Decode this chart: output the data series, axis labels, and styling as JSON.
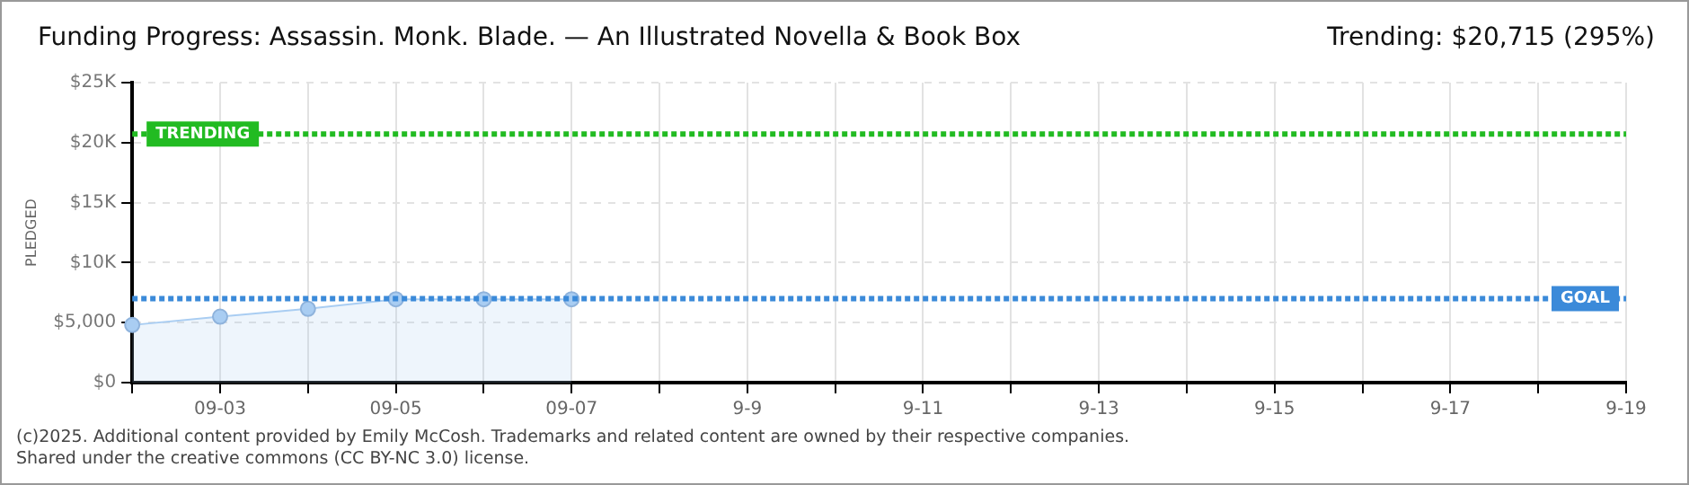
{
  "chart_data": {
    "type": "area",
    "title": "Funding Progress: Assassin. Monk. Blade. — An Illustrated Novella & Book Box",
    "ylabel": "PLEDGED",
    "annotations": [
      "Trending: $20,715 (295%)",
      "(c)2025. Additional content provided by Emily McCosh. Trademarks and related content are owned by their respective companies.",
      "Shared under the creative commons (CC BY-NC 3.0) license."
    ],
    "categories": [
      null,
      "09-03",
      null,
      "09-05",
      null,
      "09-07",
      null,
      "9-9",
      null,
      "9-11",
      null,
      "9-13",
      null,
      "9-15",
      null,
      "9-17",
      null,
      "9-19"
    ],
    "series": [
      {
        "color": "#a9cdf2",
        "values": [
          4800,
          5500,
          6150,
          6950,
          6950,
          6950,
          null,
          null,
          null,
          null,
          null,
          null,
          null,
          null,
          null,
          null,
          null,
          null
        ]
      }
    ],
    "ylim": [
      0,
      25000
    ],
    "yticks": [
      {
        "value": 0,
        "label": "$0"
      },
      {
        "value": 5000,
        "label": "$5,000"
      },
      {
        "value": 10000,
        "label": "$10K"
      },
      {
        "value": 15000,
        "label": "$15K"
      },
      {
        "value": 20000,
        "label": "$20K"
      },
      {
        "value": 25000,
        "label": "$25K"
      }
    ],
    "ref_lines": [
      {
        "axis": "y",
        "value": 20715,
        "label": "TRENDING",
        "color": "#22bb22",
        "line_style": "dotted"
      },
      {
        "axis": "y",
        "value": 7000,
        "label": "GOAL",
        "color": "#3b8ad9",
        "line_style": "dotted"
      }
    ],
    "grid": true,
    "marker": "circle",
    "legend": false
  }
}
